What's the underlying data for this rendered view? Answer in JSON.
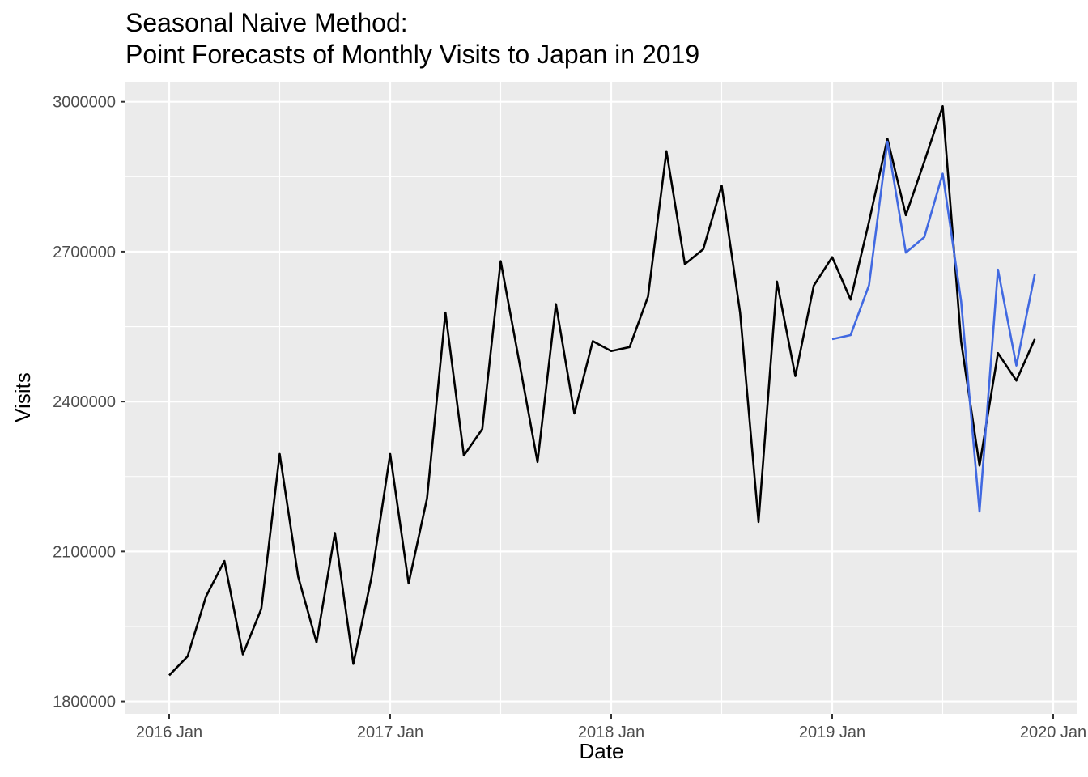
{
  "chart_data": {
    "type": "line",
    "title": "Seasonal Naive Method:",
    "subtitle": "Point Forecasts of Monthly Visits to Japan in 2019",
    "xlabel": "Date",
    "ylabel": "Visits",
    "x_ticks": [
      "2016 Jan",
      "2017 Jan",
      "2018 Jan",
      "2019 Jan",
      "2020 Jan"
    ],
    "y_ticks": [
      1800000,
      2100000,
      2400000,
      2700000,
      3000000
    ],
    "ylim": [
      1775000,
      3040000
    ],
    "grid": true,
    "legend": "none",
    "series": [
      {
        "color": "#000000",
        "x": [
          "2016-01",
          "2016-02",
          "2016-03",
          "2016-04",
          "2016-05",
          "2016-06",
          "2016-07",
          "2016-08",
          "2016-09",
          "2016-10",
          "2016-11",
          "2016-12",
          "2017-01",
          "2017-02",
          "2017-03",
          "2017-04",
          "2017-05",
          "2017-06",
          "2017-07",
          "2017-08",
          "2017-09",
          "2017-10",
          "2017-11",
          "2017-12",
          "2018-01",
          "2018-02",
          "2018-03",
          "2018-04",
          "2018-05",
          "2018-06",
          "2018-07",
          "2018-08",
          "2018-09",
          "2018-10",
          "2018-11",
          "2018-12",
          "2019-01",
          "2019-02",
          "2019-03",
          "2019-04",
          "2019-05",
          "2019-06",
          "2019-07",
          "2019-08",
          "2019-09",
          "2019-10",
          "2019-11",
          "2019-12"
        ],
        "values": [
          1852000,
          1890000,
          2010000,
          2081000,
          1894000,
          1985000,
          2295000,
          2050000,
          1918000,
          2137000,
          1875000,
          2051000,
          2295000,
          2036000,
          2206000,
          2578000,
          2292000,
          2345000,
          2681000,
          2481000,
          2279000,
          2595000,
          2376000,
          2521000,
          2501000,
          2509000,
          2610000,
          2901000,
          2675000,
          2705000,
          2832000,
          2578000,
          2159000,
          2640000,
          2451000,
          2632000,
          2689000,
          2604000,
          2760000,
          2926000,
          2773000,
          2880000,
          2991000,
          2520000,
          2272000,
          2497000,
          2442000,
          2525000
        ]
      },
      {
        "color": "#4169e1",
        "x": [
          "2019-01",
          "2019-02",
          "2019-03",
          "2019-04",
          "2019-05",
          "2019-06",
          "2019-07",
          "2019-08",
          "2019-09",
          "2019-10",
          "2019-11",
          "2019-12"
        ],
        "values": [
          2525000,
          2533000,
          2633000,
          2920000,
          2698000,
          2729000,
          2856000,
          2601000,
          2180000,
          2664000,
          2472000,
          2655000
        ]
      }
    ]
  }
}
